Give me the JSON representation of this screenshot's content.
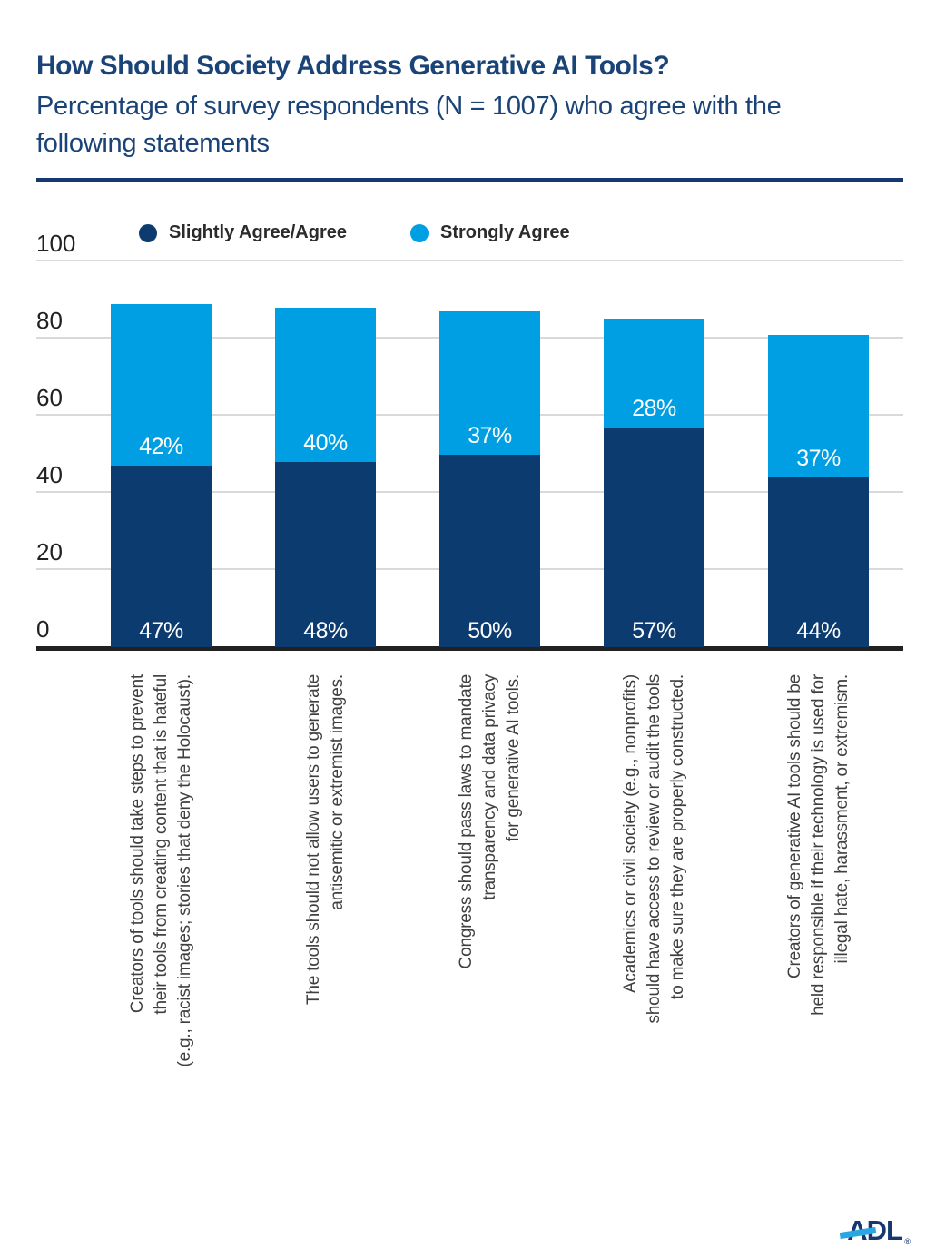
{
  "chart_data": {
    "type": "bar",
    "variant": "stacked-vertical",
    "title": "How Should Society Address Generative AI Tools?",
    "subtitle": "Percentage of survey respondents (N = 1007) who agree with the\nfollowing statements",
    "legend_position": "top",
    "grid": true,
    "ylim": [
      0,
      100
    ],
    "y_ticks": [
      0,
      20,
      40,
      60,
      80,
      100
    ],
    "value_suffix": "%",
    "series": [
      {
        "name": "Slightly Agree/Agree",
        "color": "#0c3b70",
        "values": [
          47,
          48,
          50,
          57,
          44
        ]
      },
      {
        "name": "Strongly Agree",
        "color": "#009fe3",
        "values": [
          42,
          40,
          37,
          28,
          37
        ]
      }
    ],
    "totals": [
      89,
      88,
      87,
      85,
      81
    ],
    "categories": [
      [
        "Creators of tools should take steps to prevent",
        "their tools from creating content that is hateful",
        "(e.g., racist images; stories that deny the Holocaust)."
      ],
      [
        "The tools should not allow users to generate",
        "antisemitic or extremist images."
      ],
      [
        "Congress should pass laws to mandate",
        "transparency and data privacy",
        "for generative AI tools."
      ],
      [
        "Academics or civil society (e.g., nonprofits)",
        "should have access to review or audit the tools",
        "to make sure they are properly constructed."
      ],
      [
        "Creators of generative AI tools should be",
        "held responsible if their technology is used for",
        "illegal hate, harassment, or extremism."
      ]
    ],
    "colors": {
      "title": "#1a4377",
      "axis_line": "#212121",
      "gridline": "#d9d9d9",
      "category_text": "#3f3f3f",
      "legend_text": "#2b2b2b"
    }
  },
  "footer": {
    "logo": "ADL",
    "registered_mark": "®"
  }
}
